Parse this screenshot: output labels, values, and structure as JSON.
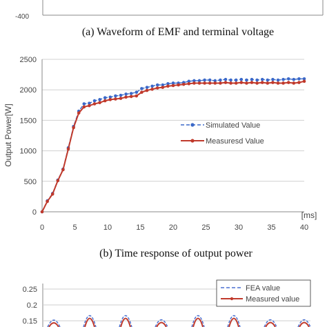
{
  "top_panel": {
    "partial_tick": "-400",
    "caption": "(a)  Waveform of EMF and terminal voltage"
  },
  "middle_panel": {
    "caption": "(b)  Time response of output power"
  },
  "bottom_panel": {
    "y_ticks": [
      "0.25",
      "0.2",
      "0.15"
    ],
    "legend": [
      "FEA value",
      "Measured value"
    ],
    "colors": {
      "fea": "#4a6fd0",
      "measured": "#c0392b"
    }
  },
  "chart_data": [
    {
      "type": "line",
      "title": "",
      "xlabel": "[ms]",
      "ylabel": "Output Power[W]",
      "xlim": [
        0,
        40
      ],
      "ylim": [
        0,
        2500
      ],
      "x_ticks": [
        "0",
        "5",
        "10",
        "15",
        "20",
        "25",
        "30",
        "35",
        "40"
      ],
      "y_ticks": [
        "0",
        "500",
        "1000",
        "1500",
        "2000",
        "2500"
      ],
      "grid": "horizontal",
      "legend_position": "center-right",
      "x": [
        0,
        0.8,
        1.6,
        2.4,
        3.2,
        4.0,
        4.8,
        5.6,
        6.4,
        7.2,
        8.0,
        8.8,
        9.6,
        10.4,
        11.2,
        12.0,
        12.8,
        13.6,
        14.4,
        15.2,
        16.0,
        16.8,
        17.6,
        18.4,
        19.2,
        20.0,
        20.8,
        21.6,
        22.4,
        23.2,
        24.0,
        24.8,
        25.6,
        26.4,
        27.2,
        28.0,
        28.8,
        29.6,
        30.4,
        31.2,
        32.0,
        32.8,
        33.6,
        34.4,
        35.2,
        36.0,
        36.8,
        37.6,
        38.4,
        39.2,
        40.0
      ],
      "series": [
        {
          "name": "Simulated Value",
          "color": "#3a68c8",
          "values": [
            0,
            180,
            300,
            520,
            700,
            1050,
            1400,
            1650,
            1770,
            1780,
            1820,
            1840,
            1870,
            1880,
            1900,
            1910,
            1930,
            1940,
            1960,
            2020,
            2040,
            2060,
            2080,
            2080,
            2100,
            2110,
            2110,
            2120,
            2140,
            2150,
            2150,
            2160,
            2160,
            2150,
            2160,
            2170,
            2160,
            2160,
            2170,
            2160,
            2170,
            2160,
            2170,
            2160,
            2170,
            2160,
            2170,
            2180,
            2170,
            2180,
            2180
          ]
        },
        {
          "name": "Measuresd Value",
          "color": "#c0392b",
          "values": [
            0,
            170,
            290,
            510,
            690,
            1030,
            1380,
            1620,
            1720,
            1740,
            1770,
            1790,
            1820,
            1840,
            1850,
            1860,
            1880,
            1890,
            1900,
            1960,
            1990,
            2010,
            2030,
            2040,
            2060,
            2070,
            2080,
            2090,
            2100,
            2110,
            2110,
            2110,
            2110,
            2110,
            2110,
            2120,
            2110,
            2110,
            2120,
            2110,
            2120,
            2110,
            2120,
            2110,
            2120,
            2110,
            2110,
            2120,
            2110,
            2120,
            2140
          ]
        }
      ]
    }
  ]
}
